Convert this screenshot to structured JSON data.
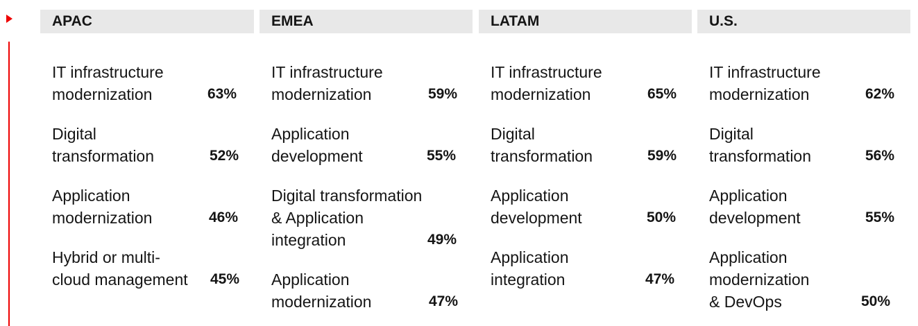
{
  "regions": [
    {
      "name": "APAC",
      "items": [
        {
          "label": "IT infrastructure\nmodernization",
          "value": "63%"
        },
        {
          "label": "Digital\ntransformation",
          "value": "52%"
        },
        {
          "label": "Application\nmodernization",
          "value": "46%"
        },
        {
          "label": "Hybrid or multi-\ncloud management",
          "value": "45%"
        }
      ]
    },
    {
      "name": "EMEA",
      "items": [
        {
          "label": "IT infrastructure\nmodernization",
          "value": "59%"
        },
        {
          "label": "Application\ndevelopment",
          "value": "55%"
        },
        {
          "label": "Digital transformation\n& Application\nintegration",
          "value": "49%"
        },
        {
          "label": "Application\nmodernization",
          "value": "47%"
        }
      ]
    },
    {
      "name": "LATAM",
      "items": [
        {
          "label": "IT infrastructure\nmodernization",
          "value": "65%"
        },
        {
          "label": "Digital\ntransformation",
          "value": "59%"
        },
        {
          "label": "Application\ndevelopment",
          "value": "50%"
        },
        {
          "label": "Application\nintegration",
          "value": "47%"
        }
      ]
    },
    {
      "name": "U.S.",
      "items": [
        {
          "label": "IT infrastructure\nmodernization",
          "value": "62%"
        },
        {
          "label": "Digital\ntransformation",
          "value": "56%"
        },
        {
          "label": "Application\ndevelopment",
          "value": "55%"
        },
        {
          "label": "Application\nmodernization\n& DevOps",
          "value": "50%"
        }
      ]
    }
  ],
  "colors": {
    "accent": "#ee0000",
    "header_bg": "#e8e8e8",
    "text": "#151515"
  }
}
